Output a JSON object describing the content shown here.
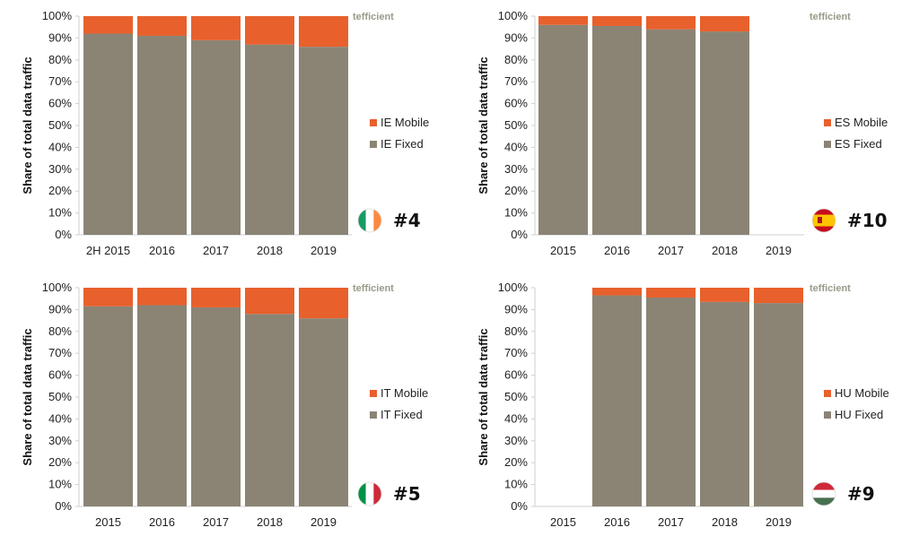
{
  "colors": {
    "fixed": "#8b8475",
    "mobile": "#e8602c",
    "axis": "#cfcfcf"
  },
  "chart_data": [
    {
      "type": "bar",
      "stacked": true,
      "categories": [
        "2H 2015",
        "2016",
        "2017",
        "2018",
        "2019"
      ],
      "series": [
        {
          "name": "IE Fixed",
          "values": [
            92,
            91,
            89,
            87,
            86
          ]
        },
        {
          "name": "IE Mobile",
          "values": [
            8,
            9,
            11,
            13,
            14
          ]
        }
      ],
      "ylabel": "Share of total data traffic",
      "yticks": [
        "0%",
        "10%",
        "20%",
        "30%",
        "40%",
        "50%",
        "60%",
        "70%",
        "80%",
        "90%",
        "100%"
      ],
      "ylim": [
        0,
        100
      ],
      "legend": "right",
      "rank": "#4",
      "flag": "ireland-flag-icon",
      "brand": "tefficient"
    },
    {
      "type": "bar",
      "stacked": true,
      "categories": [
        "2015",
        "2016",
        "2017",
        "2018",
        "2019"
      ],
      "series": [
        {
          "name": "ES Fixed",
          "values": [
            96,
            95.5,
            94,
            93,
            null
          ]
        },
        {
          "name": "ES Mobile",
          "values": [
            4,
            4.5,
            6,
            7,
            null
          ]
        }
      ],
      "ylabel": "Share of total data traffic",
      "yticks": [
        "0%",
        "10%",
        "20%",
        "30%",
        "40%",
        "50%",
        "60%",
        "70%",
        "80%",
        "90%",
        "100%"
      ],
      "ylim": [
        0,
        100
      ],
      "legend": "right",
      "rank": "#10",
      "flag": "spain-flag-icon",
      "brand": "tefficient"
    },
    {
      "type": "bar",
      "stacked": true,
      "categories": [
        "2015",
        "2016",
        "2017",
        "2018",
        "2019"
      ],
      "series": [
        {
          "name": "IT Fixed",
          "values": [
            91.5,
            92,
            91,
            88,
            86
          ]
        },
        {
          "name": "IT Mobile",
          "values": [
            8.5,
            8,
            9,
            12,
            14
          ]
        }
      ],
      "ylabel": "Share of total data traffic",
      "yticks": [
        "0%",
        "10%",
        "20%",
        "30%",
        "40%",
        "50%",
        "60%",
        "70%",
        "80%",
        "90%",
        "100%"
      ],
      "ylim": [
        0,
        100
      ],
      "legend": "right",
      "rank": "#5",
      "flag": "italy-flag-icon",
      "brand": "tefficient"
    },
    {
      "type": "bar",
      "stacked": true,
      "categories": [
        "2015",
        "2016",
        "2017",
        "2018",
        "2019"
      ],
      "series": [
        {
          "name": "HU Fixed",
          "values": [
            null,
            96.5,
            95.5,
            93.5,
            93
          ]
        },
        {
          "name": "HU Mobile",
          "values": [
            null,
            3.5,
            4.5,
            6.5,
            7
          ]
        }
      ],
      "ylabel": "Share of total data traffic",
      "yticks": [
        "0%",
        "10%",
        "20%",
        "30%",
        "40%",
        "50%",
        "60%",
        "70%",
        "80%",
        "90%",
        "100%"
      ],
      "ylim": [
        0,
        100
      ],
      "legend": "right",
      "rank": "#9",
      "flag": "hungary-flag-icon",
      "brand": "tefficient"
    }
  ]
}
